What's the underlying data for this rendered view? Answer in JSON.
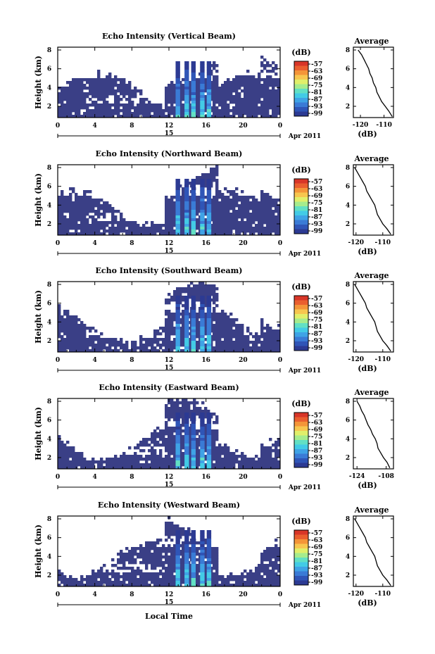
{
  "colors": {
    "background": "#ffffff",
    "echo_base": "#3a3f86",
    "colormap": [
      "#2c3a93",
      "#2f55b7",
      "#3a7bd6",
      "#3fa3e6",
      "#43cbe6",
      "#62e0c4",
      "#a6ec8d",
      "#e1ef6a",
      "#f7c64f",
      "#f49539",
      "#ea5f2f",
      "#d83628"
    ]
  },
  "shared": {
    "ylabel": "Height (km)",
    "xticks": [
      "0",
      "4",
      "8",
      "12",
      "16",
      "20",
      "0"
    ],
    "date_label": "15",
    "month_label": "Apr 2011",
    "xlabel": "Local Time",
    "cbar_unit": "(dB)",
    "cbar_ticks": [
      "-57",
      "-63",
      "-69",
      "-75",
      "-81",
      "-87",
      "-93",
      "-99"
    ],
    "avg_title": "Average",
    "avg_unit": "(dB)"
  },
  "chart_data": [
    {
      "type": "heatmap",
      "title": "Echo Intensity (Vertical Beam)",
      "yticks": [
        "2",
        "4",
        "6",
        "8"
      ],
      "x_range": [
        0,
        24
      ],
      "y_range": [
        0.8,
        8.3
      ],
      "avg_xticks": [
        "-120",
        "-110"
      ],
      "avg_xrange": [
        -123,
        -106
      ],
      "avg_profile": {
        "height": [
          0.9,
          1.5,
          2.0,
          2.5,
          3.0,
          3.5,
          4.0,
          4.5,
          5.0,
          5.5,
          6.0,
          6.5,
          7.0,
          7.5,
          8.0
        ],
        "value": [
          -106.5,
          -108,
          -109.5,
          -111,
          -112,
          -113,
          -113.5,
          -114.5,
          -115,
          -116,
          -116.5,
          -117.5,
          -118.5,
          -119.5,
          -121
        ]
      }
    },
    {
      "type": "heatmap",
      "title": "Echo Intensity (Northward Beam)",
      "yticks": [
        "2",
        "4",
        "6",
        "8"
      ],
      "x_range": [
        0,
        24
      ],
      "y_range": [
        0.8,
        8.3
      ],
      "avg_xticks": [
        "-120",
        "-110"
      ],
      "avg_xrange": [
        -121,
        -106
      ],
      "avg_profile": {
        "height": [
          0.9,
          1.5,
          2.0,
          2.5,
          3.0,
          3.5,
          4.0,
          4.5,
          5.0,
          5.5,
          6.0,
          6.5,
          7.0,
          7.5,
          8.0
        ],
        "value": [
          -107,
          -108.5,
          -110,
          -111,
          -112,
          -112.5,
          -113,
          -114,
          -115,
          -116,
          -116.5,
          -117.5,
          -118.5,
          -119.5,
          -120.5
        ]
      }
    },
    {
      "type": "heatmap",
      "title": "Echo Intensity (Southward Beam)",
      "yticks": [
        "2",
        "4",
        "6",
        "8"
      ],
      "x_range": [
        0,
        24
      ],
      "y_range": [
        0.8,
        8.3
      ],
      "avg_xticks": [
        "-120",
        "-110"
      ],
      "avg_xrange": [
        -121,
        -106
      ],
      "avg_profile": {
        "height": [
          0.9,
          1.5,
          2.0,
          2.5,
          3.0,
          3.5,
          4.0,
          4.5,
          5.0,
          5.5,
          6.0,
          6.5,
          7.0,
          7.5,
          8.0
        ],
        "value": [
          -107,
          -108.5,
          -110,
          -111,
          -112,
          -112.5,
          -113,
          -114,
          -115,
          -116,
          -116.5,
          -117.5,
          -118.5,
          -119.5,
          -120.5
        ]
      }
    },
    {
      "type": "heatmap",
      "title": "Echo Intensity (Eastward Beam)",
      "yticks": [
        "2",
        "4",
        "6",
        "8"
      ],
      "x_range": [
        0,
        24
      ],
      "y_range": [
        0.8,
        8.3
      ],
      "avg_xticks": [
        "-124",
        "-108"
      ],
      "avg_xrange": [
        -126,
        -104
      ],
      "avg_profile": {
        "height": [
          0.9,
          1.5,
          2.0,
          2.5,
          3.0,
          3.5,
          4.0,
          4.5,
          5.0,
          5.5,
          6.0,
          6.5,
          7.0,
          7.5,
          8.0
        ],
        "value": [
          -106,
          -107.5,
          -109.5,
          -111,
          -112.5,
          -113,
          -114,
          -115.5,
          -116.5,
          -118,
          -119,
          -120,
          -121.5,
          -122.5,
          -124
        ]
      }
    },
    {
      "type": "heatmap",
      "title": "Echo Intensity (Westward Beam)",
      "yticks": [
        "2",
        "4",
        "6",
        "8"
      ],
      "x_range": [
        0,
        24
      ],
      "y_range": [
        0.8,
        8.3
      ],
      "avg_xticks": [
        "-120",
        "-110"
      ],
      "avg_xrange": [
        -121,
        -106
      ],
      "avg_profile": {
        "height": [
          0.9,
          1.5,
          2.0,
          2.5,
          3.0,
          3.5,
          4.0,
          4.5,
          5.0,
          5.5,
          6.0,
          6.5,
          7.0,
          7.5,
          8.0
        ],
        "value": [
          -107,
          -108.5,
          -110,
          -111,
          -112,
          -112.5,
          -113,
          -114,
          -115,
          -116,
          -116.5,
          -117.5,
          -118.5,
          -119.5,
          -120.5
        ]
      }
    }
  ]
}
